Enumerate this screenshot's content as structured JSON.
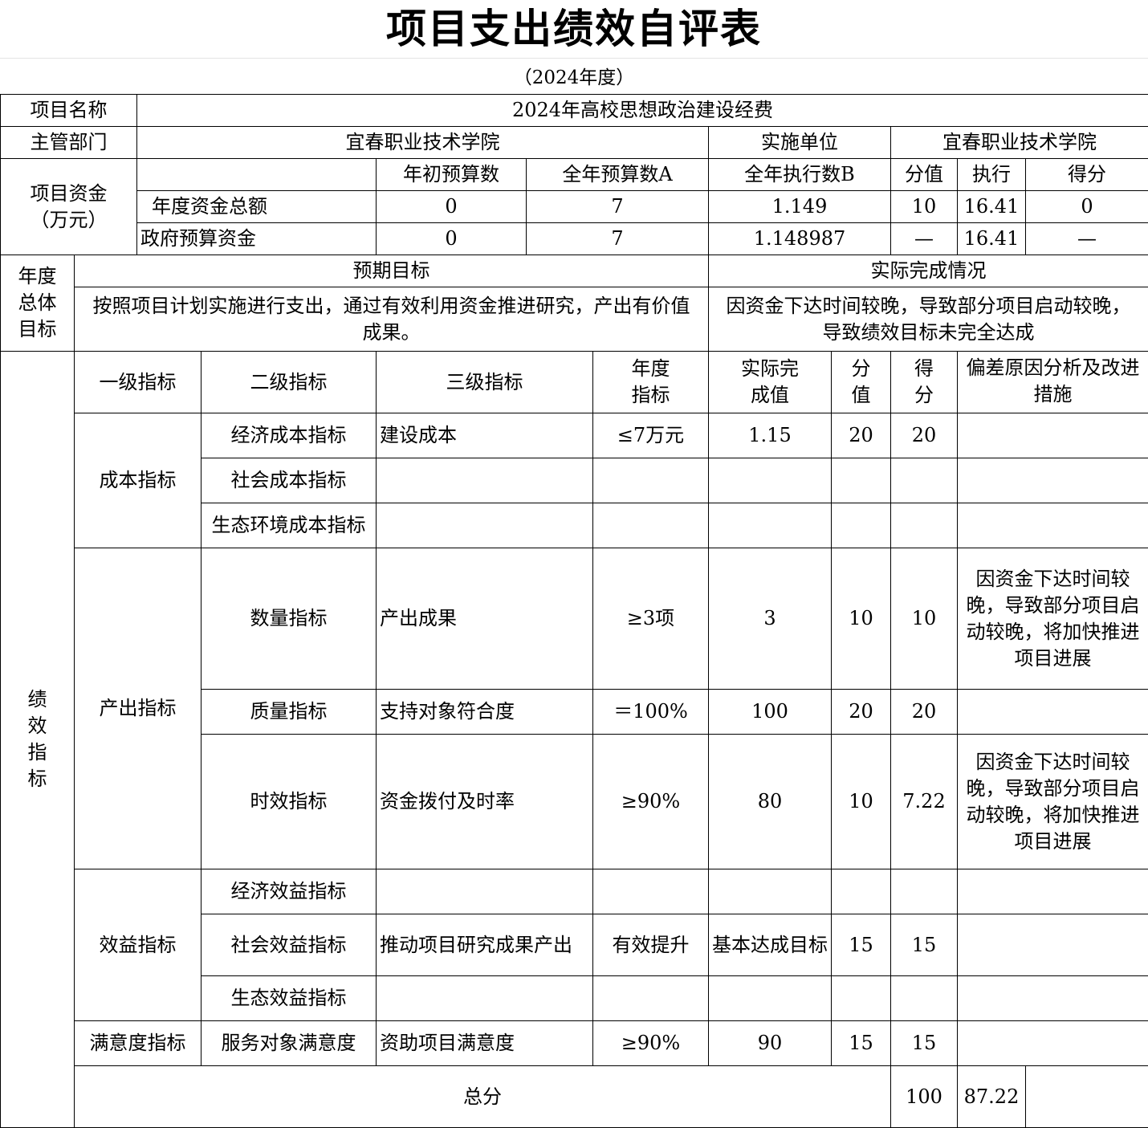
{
  "title": "项目支出绩效自评表",
  "subtitle": "（2024年度）",
  "info": {
    "project_name_label": "项目名称",
    "project_name": "2024年高校思想政治建设经费",
    "dept_label": "主管部门",
    "dept": "宜春职业技术学院",
    "unit_label": "实施单位",
    "unit": "宜春职业技术学院"
  },
  "funds": {
    "label": "项目资金（万元）",
    "headers": [
      "年初预算数",
      "全年预算数A",
      "全年执行数B",
      "分值",
      "执行",
      "得分"
    ],
    "rows": [
      {
        "name": "年度资金总额",
        "initial": "0",
        "annual": "7",
        "executed": "1.149",
        "score_value": "10",
        "rate": "16.41",
        "score": "0"
      },
      {
        "name": "政府预算资金",
        "initial": "0",
        "annual": "7",
        "executed": "1.148987",
        "score_value": "—",
        "rate": "16.41",
        "score": "—"
      }
    ]
  },
  "goals": {
    "label": "年度总体目标",
    "expected_label": "预期目标",
    "actual_label": "实际完成情况",
    "expected": "按照项目计划实施进行支出，通过有效利用资金推进研究，产出有价值成果。",
    "actual": "因资金下达时间较晚，导致部分项目启动较晚，导致绩效目标未完全达成"
  },
  "indicators": {
    "label": "绩效指标",
    "headers": [
      "一级指标",
      "二级指标",
      "三级指标",
      "年度指标",
      "实际完成值",
      "分值",
      "得分",
      "偏差原因分析及改进措施"
    ],
    "groups": [
      {
        "level1": "成本指标",
        "rows": [
          {
            "level2": "经济成本指标",
            "level3": "建设成本",
            "target": "≤7万元",
            "actual": "1.15",
            "value": "20",
            "score": "20",
            "reason": ""
          },
          {
            "level2": "社会成本指标",
            "level3": "",
            "target": "",
            "actual": "",
            "value": "",
            "score": "",
            "reason": ""
          },
          {
            "level2": "生态环境成本指标",
            "level3": "",
            "target": "",
            "actual": "",
            "value": "",
            "score": "",
            "reason": ""
          }
        ]
      },
      {
        "level1": "产出指标",
        "rows": [
          {
            "level2": "数量指标",
            "level3": "产出成果",
            "target": "≥3项",
            "actual": "3",
            "value": "10",
            "score": "10",
            "reason": "因资金下达时间较晚，导致部分项目启动较晚，将加快推进项目进展"
          },
          {
            "level2": "质量指标",
            "level3": "支持对象符合度",
            "target": "＝100%",
            "actual": "100",
            "value": "20",
            "score": "20",
            "reason": ""
          },
          {
            "level2": "时效指标",
            "level3": "资金拨付及时率",
            "target": "≥90%",
            "actual": "80",
            "value": "10",
            "score": "7.22",
            "reason": "因资金下达时间较晚，导致部分项目启动较晚，将加快推进项目进展"
          }
        ]
      },
      {
        "level1": "效益指标",
        "rows": [
          {
            "level2": "经济效益指标",
            "level3": "",
            "target": "",
            "actual": "",
            "value": "",
            "score": "",
            "reason": ""
          },
          {
            "level2": "社会效益指标",
            "level3": "推动项目研究成果产出",
            "target": "有效提升",
            "actual": "基本达成目标",
            "value": "15",
            "score": "15",
            "reason": ""
          },
          {
            "level2": "生态效益指标",
            "level3": "",
            "target": "",
            "actual": "",
            "value": "",
            "score": "",
            "reason": ""
          }
        ]
      },
      {
        "level1": "满意度指标",
        "rows": [
          {
            "level2": "服务对象满意度",
            "level3": "资助项目满意度",
            "target": "≥90%",
            "actual": "90",
            "value": "15",
            "score": "15",
            "reason": ""
          }
        ]
      }
    ]
  },
  "total": {
    "label": "总分",
    "value": "100",
    "score": "87.22"
  }
}
